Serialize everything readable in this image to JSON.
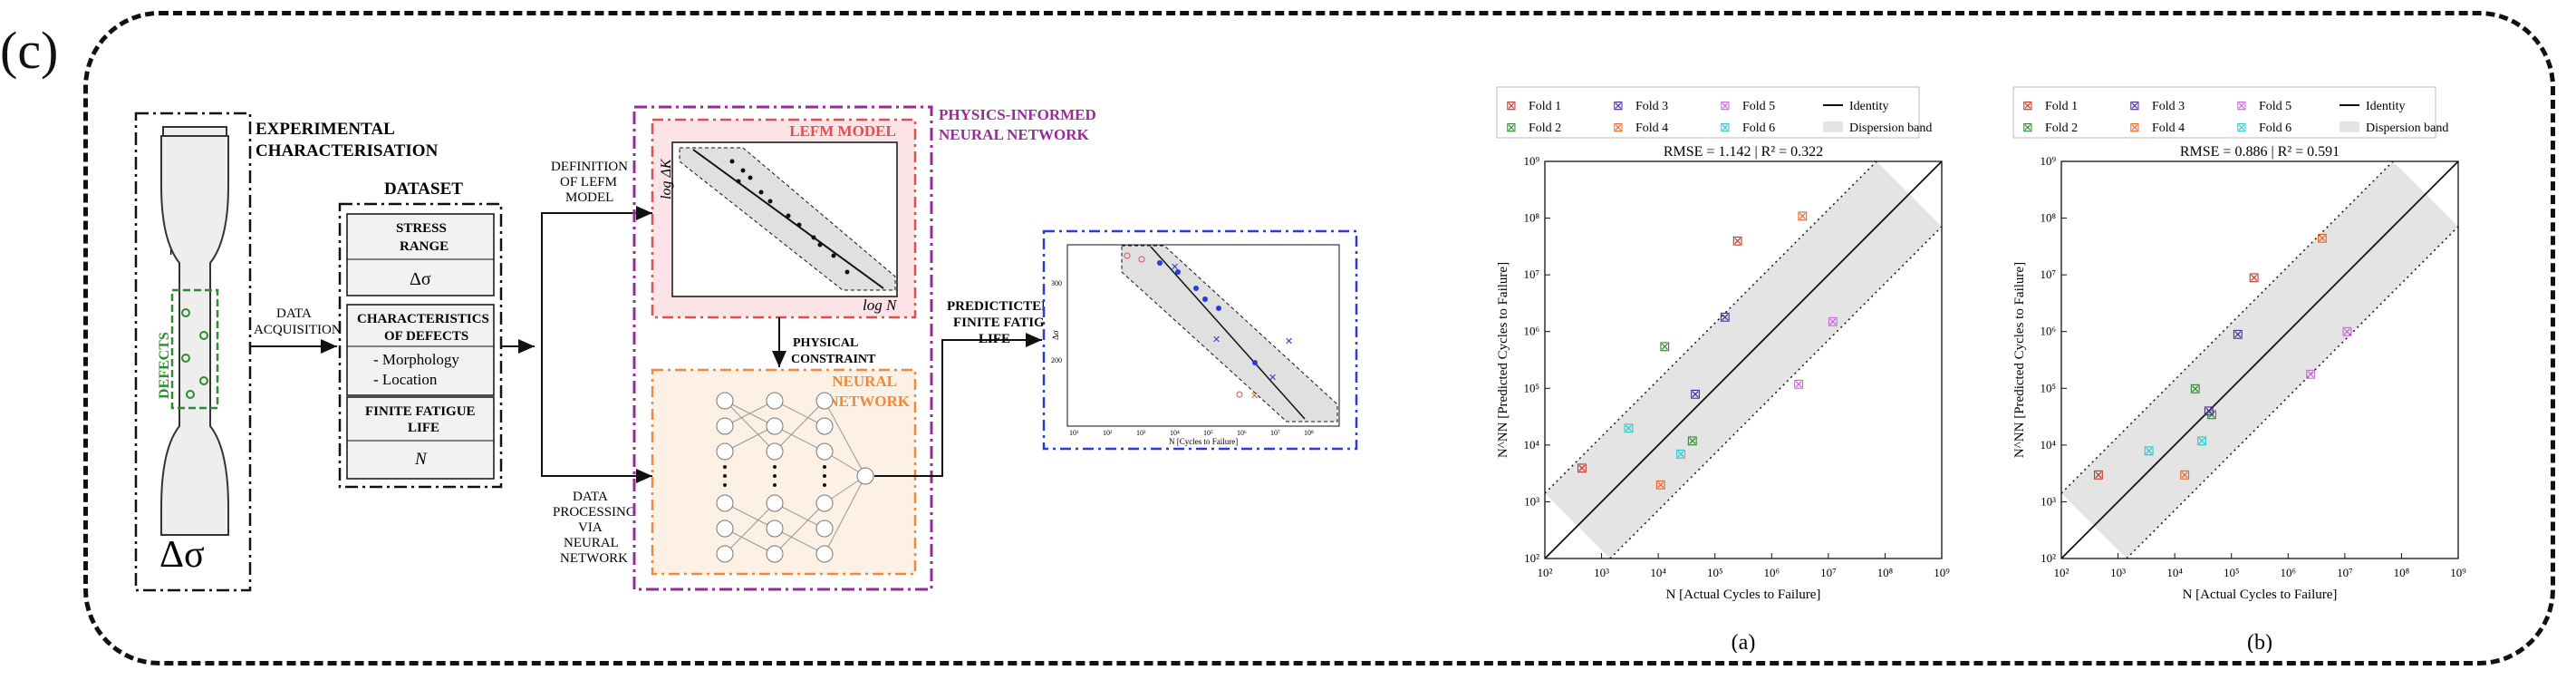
{
  "panel_label": "(c)",
  "workflow": {
    "experimental": [
      "EXPERIMENTAL",
      "CHARACTERISATION"
    ],
    "stress_symbol": "Δσ",
    "defects_label": "DEFECTS",
    "data_acquisition": [
      "DATA",
      "ACQUISITION"
    ],
    "dataset_title": "DATASET",
    "dataset": {
      "stress_range": [
        "STRESS",
        "RANGE"
      ],
      "stress_symbol": "Δσ",
      "characteristics": [
        "CHARACTERISTICS",
        "OF DEFECTS"
      ],
      "morphology": "- Morphology",
      "location": "- Location",
      "finite_fatigue": [
        "FINITE FATIGUE",
        "LIFE"
      ],
      "n_symbol": "N"
    },
    "definition": [
      "DEFINITION",
      "OF LEFM",
      "MODEL"
    ],
    "data_processing": [
      "DATA",
      "PROCESSING",
      "VIA",
      "NEURAL",
      "NETWORK"
    ],
    "pinn_title": [
      "PHYSICS-INFORMED",
      "NEURAL NETWORK"
    ],
    "lefm_title": "LEFM MODEL",
    "lefm_y": "log ΔK",
    "lefm_x": "log N",
    "physical_constraint": [
      "PHYSICAL",
      "CONSTRAINT"
    ],
    "nn_title": [
      "NEURAL",
      "NETWORK"
    ],
    "predicted": [
      "PREDICTICTED",
      "FINITE FATIGUE",
      "LIFE"
    ],
    "small_plot_x": "N [Cycles to Failure]",
    "small_plot_y": "Δσ",
    "small_plot_x_ticks": [
      "10¹",
      "10²",
      "10³",
      "10⁴",
      "10⁵",
      "10⁶",
      "10⁷",
      "10⁸"
    ],
    "small_plot_y_ticks": [
      "300",
      "200"
    ]
  },
  "legend_items": [
    "Fold 1",
    "Fold 3",
    "Fold 5",
    "Identity",
    "Fold 2",
    "Fold 4",
    "Fold 6",
    "Dispersion band"
  ],
  "colors": {
    "fold1": "#c0392b",
    "fold2": "#2e8b2e",
    "fold3": "#4b2a9e",
    "fold4": "#e8682a",
    "fold5": "#c86ad8",
    "fold6": "#2ec8cc",
    "band": "#e4e4e4",
    "lefm_fill": "#fbe3e6",
    "lefm_border": "#e05050",
    "nn_fill": "#fdf0e4",
    "nn_border": "#f08a3a",
    "pinn_border": "#9a2a9a",
    "pred_border": "#2a3adc"
  },
  "chart_data": [
    {
      "type": "scatter",
      "panel": "(a)",
      "title": "RMSE = 1.142 | R² = 0.322",
      "xlabel": "N [Actual Cycles to Failure]",
      "ylabel": "N^NN [Predicted Cycles to Failure]",
      "log_scale": true,
      "xlim": [
        100,
        1000000000
      ],
      "ylim": [
        100,
        1000000000
      ],
      "tick_labels": [
        "10²",
        "10³",
        "10⁴",
        "10⁵",
        "10⁶",
        "10⁷",
        "10⁸",
        "10⁹"
      ],
      "legend": "top",
      "series": [
        {
          "name": "Fold 1",
          "points": [
            [
              450,
              4000
            ],
            [
              250000,
              40000000
            ]
          ]
        },
        {
          "name": "Fold 2",
          "points": [
            [
              13000,
              550000
            ],
            [
              40000,
              12000
            ]
          ]
        },
        {
          "name": "Fold 3",
          "points": [
            [
              45000,
              80000
            ],
            [
              150000,
              1800000
            ]
          ]
        },
        {
          "name": "Fold 4",
          "points": [
            [
              11000,
              2000
            ],
            [
              3500000,
              110000000
            ]
          ]
        },
        {
          "name": "Fold 5",
          "points": [
            [
              3000000,
              120000
            ],
            [
              12000000,
              1500000
            ]
          ]
        },
        {
          "name": "Fold 6",
          "points": [
            [
              3000,
              20000
            ],
            [
              25000,
              7000
            ]
          ]
        }
      ]
    },
    {
      "type": "scatter",
      "panel": "(b)",
      "title": "RMSE = 0.886 | R² = 0.591",
      "xlabel": "N [Actual Cycles to Failure]",
      "ylabel": "N^NN [Predicted Cycles to Failure]",
      "log_scale": true,
      "xlim": [
        100,
        1000000000
      ],
      "ylim": [
        100,
        1000000000
      ],
      "tick_labels": [
        "10²",
        "10³",
        "10⁴",
        "10⁵",
        "10⁶",
        "10⁷",
        "10⁸",
        "10⁹"
      ],
      "legend": "top",
      "series": [
        {
          "name": "Fold 1",
          "points": [
            [
              450,
              3000
            ],
            [
              250000,
              9000000
            ]
          ]
        },
        {
          "name": "Fold 2",
          "points": [
            [
              23000,
              100000
            ],
            [
              45000,
              35000
            ]
          ]
        },
        {
          "name": "Fold 3",
          "points": [
            [
              40000,
              40000
            ],
            [
              130000,
              900000
            ]
          ]
        },
        {
          "name": "Fold 4",
          "points": [
            [
              15000,
              3000
            ],
            [
              4000000,
              45000000
            ]
          ]
        },
        {
          "name": "Fold 5",
          "points": [
            [
              2500000,
              180000
            ],
            [
              11000000,
              1000000
            ]
          ]
        },
        {
          "name": "Fold 6",
          "points": [
            [
              3500,
              8000
            ],
            [
              30000,
              12000
            ]
          ]
        }
      ]
    }
  ]
}
